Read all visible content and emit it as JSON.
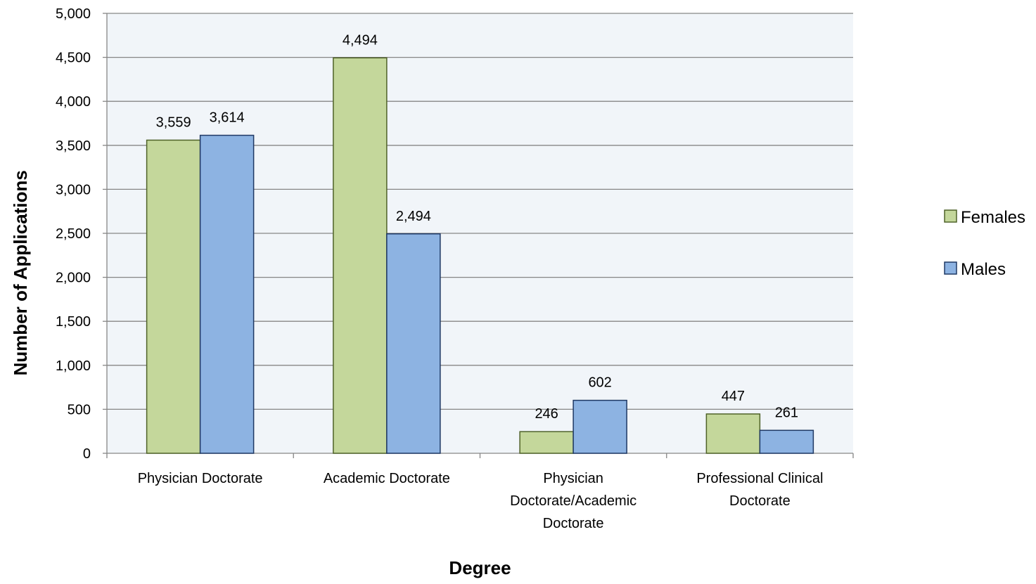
{
  "chart_data": {
    "type": "bar",
    "xlabel": "Degree",
    "ylabel": "Number of Applications",
    "ylim": [
      0,
      5000
    ],
    "ytick_step": 500,
    "grid": true,
    "legend_position": "right",
    "categories": [
      [
        "Physician Doctorate"
      ],
      [
        "Academic Doctorate"
      ],
      [
        "Physician",
        "Doctorate/Academic",
        "Doctorate"
      ],
      [
        "Professional Clinical",
        "Doctorate"
      ]
    ],
    "series": [
      {
        "name": "Females",
        "color": "#c4d79b",
        "stroke": "#4f6228",
        "values": [
          3559,
          4494,
          246,
          447
        ]
      },
      {
        "name": "Males",
        "color": "#8db3e2",
        "stroke": "#1f3864",
        "values": [
          3614,
          2494,
          602,
          261
        ]
      }
    ]
  },
  "colors": {
    "plot_background": "#f1f5f9",
    "gridline": "#868686",
    "axis": "#868686"
  }
}
